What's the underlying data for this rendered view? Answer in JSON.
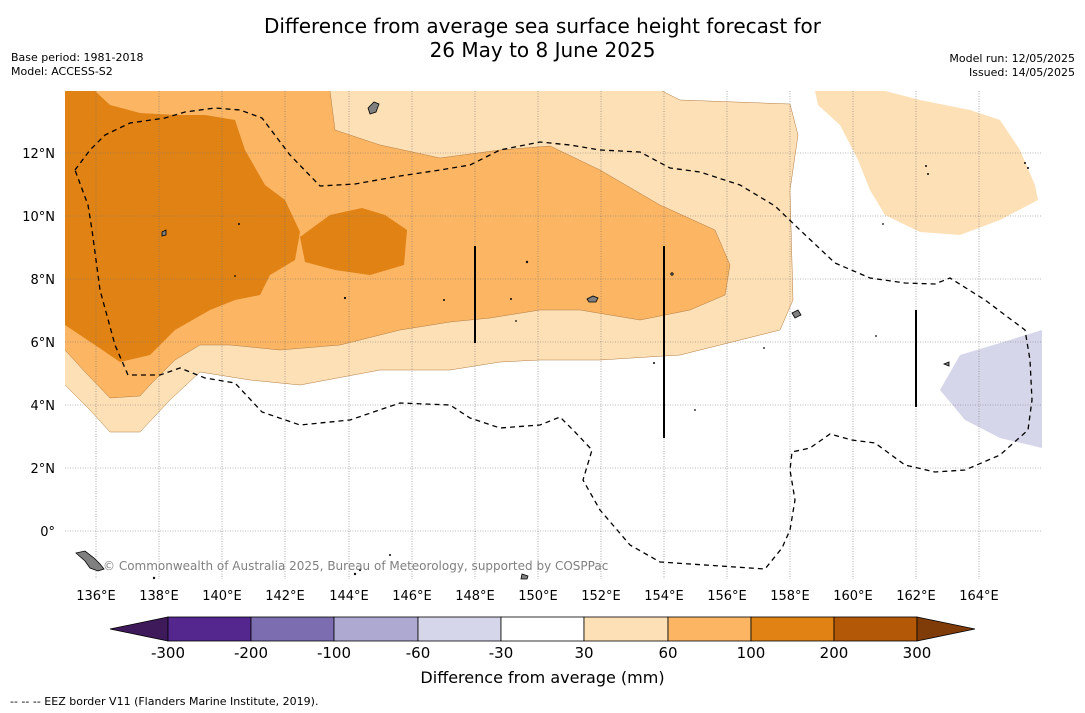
{
  "title_line1": "Difference from average sea surface height forecast for",
  "title_line2": "26 May to 8 June 2025",
  "base_period": "Base period: 1981-2018",
  "model": "Model: ACCESS-S2",
  "model_run": "Model run: 12/05/2025",
  "issued": "Issued: 14/05/2025",
  "credit": "© Commonwealth of Australia 2025, Bureau of Meteorology, supported by COSPPac",
  "eez_note": "--  --  -- EEZ border V11 (Flanders Marine Institute, 2019).",
  "map": {
    "lon_ticks": [
      "136°E",
      "138°E",
      "140°E",
      "142°E",
      "144°E",
      "146°E",
      "148°E",
      "150°E",
      "152°E",
      "154°E",
      "156°E",
      "158°E",
      "160°E",
      "162°E",
      "164°E"
    ],
    "lat_ticks": [
      "12°N",
      "10°N",
      "8°N",
      "6°N",
      "4°N",
      "2°N",
      "0°"
    ]
  },
  "colorbar": {
    "title": "Difference from average (mm)",
    "labels": [
      "-300",
      "-200",
      "-100",
      "-60",
      "-30",
      "30",
      "60",
      "100",
      "200",
      "300"
    ],
    "colors": [
      "#3f1a5b",
      "#54278f",
      "#7b6daf",
      "#aea9d1",
      "#d6d6ea",
      "#ffffff",
      "#fee0b6",
      "#fbb563",
      "#e08214",
      "#b35806",
      "#7f3b08"
    ]
  }
}
